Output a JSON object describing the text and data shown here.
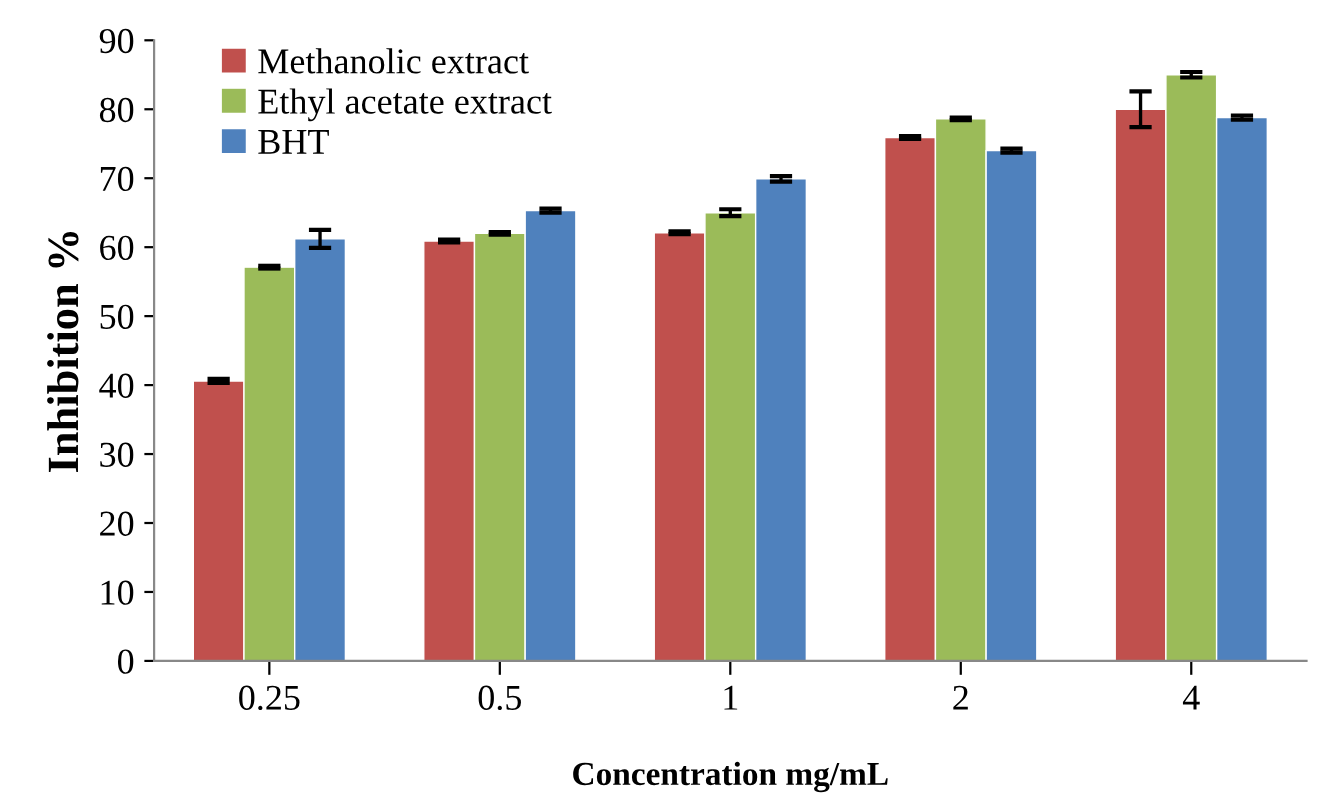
{
  "chart_data": {
    "type": "bar",
    "xlabel": "Concentration mg/mL",
    "ylabel": "Inhibition %",
    "categories": [
      "0.25",
      "0.5",
      "1",
      "2",
      "4"
    ],
    "series": [
      {
        "name": "Methanolic extract",
        "color": "#c0504d",
        "values": [
          40.6,
          60.9,
          62.1,
          75.9,
          80.0
        ],
        "errors": [
          0.3,
          0.2,
          0.2,
          0.2,
          2.6
        ]
      },
      {
        "name": "Ethyl acetate extract",
        "color": "#9bbb59",
        "values": [
          57.1,
          62.0,
          65.0,
          78.6,
          85.0
        ],
        "errors": [
          0.2,
          0.2,
          0.5,
          0.2,
          0.4
        ]
      },
      {
        "name": "BHT",
        "color": "#4f81bd",
        "values": [
          61.2,
          65.3,
          69.9,
          74.0,
          78.8
        ],
        "errors": [
          1.3,
          0.3,
          0.4,
          0.3,
          0.3
        ]
      }
    ],
    "ylim": [
      0,
      90
    ],
    "yticks": [
      0,
      10,
      20,
      30,
      40,
      50,
      60,
      70,
      80,
      90
    ],
    "grid": false,
    "legend": "top left"
  }
}
